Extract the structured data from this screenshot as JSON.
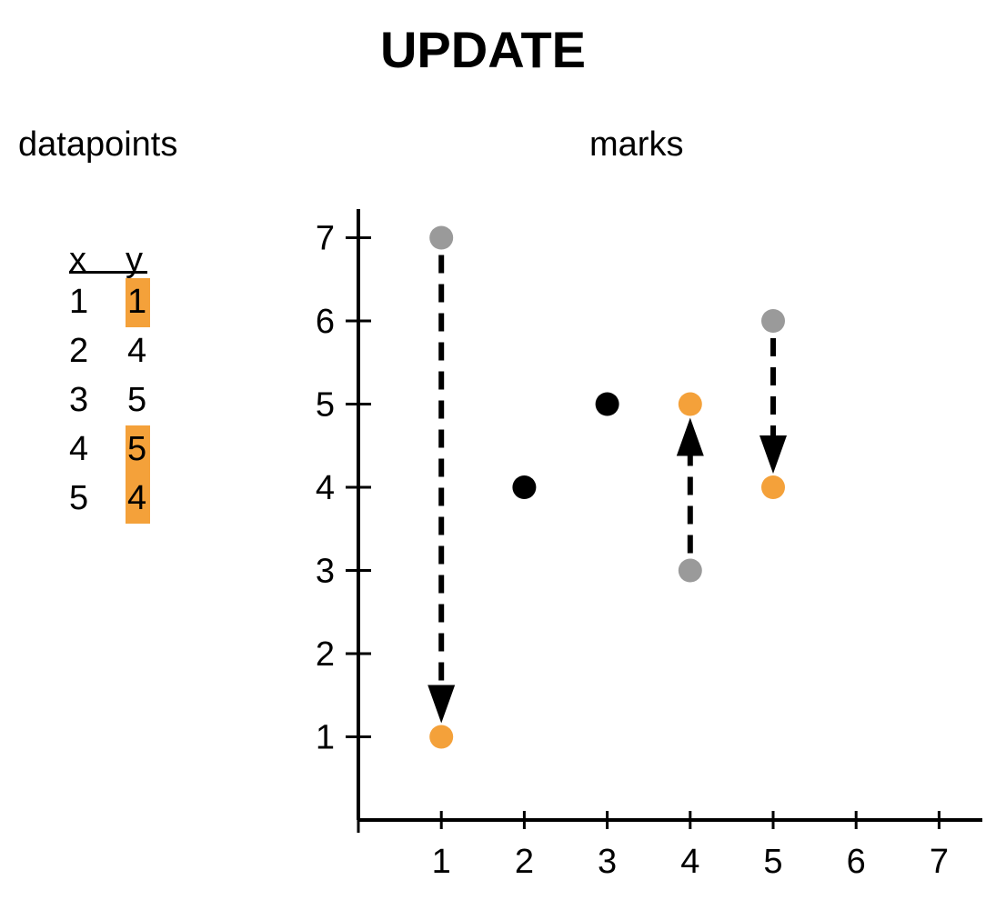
{
  "title": "UPDATE",
  "datapoints_heading": "datapoints",
  "marks_heading": "marks",
  "table": {
    "columns": [
      "x",
      "y"
    ],
    "rows": [
      {
        "x": "1",
        "y": "1",
        "highlighted": true
      },
      {
        "x": "2",
        "y": "4",
        "highlighted": false
      },
      {
        "x": "3",
        "y": "5",
        "highlighted": false
      },
      {
        "x": "4",
        "y": "5",
        "highlighted": true
      },
      {
        "x": "5",
        "y": "4",
        "highlighted": true
      }
    ]
  },
  "colors": {
    "highlight": "#f4a13a",
    "old_mark": "#9a9a9a",
    "new_mark": "#f4a13a",
    "unchanged_mark": "#000000"
  },
  "chart_data": {
    "type": "scatter",
    "xlim": [
      0,
      7.5
    ],
    "ylim": [
      0,
      7.5
    ],
    "x_ticks": [
      1,
      2,
      3,
      4,
      5,
      6,
      7
    ],
    "y_ticks": [
      1,
      2,
      3,
      4,
      5,
      6,
      7
    ],
    "x_tick_labels": [
      "1",
      "2",
      "3",
      "4",
      "5",
      "6",
      "7"
    ],
    "y_tick_labels": [
      "1",
      "2",
      "3",
      "4",
      "5",
      "6",
      "7"
    ],
    "unchanged_points": [
      {
        "x": 2,
        "y": 4
      },
      {
        "x": 3,
        "y": 5
      }
    ],
    "updates": [
      {
        "x": 1,
        "from": 7,
        "to": 1
      },
      {
        "x": 4,
        "from": 3,
        "to": 5
      },
      {
        "x": 5,
        "from": 6,
        "to": 4
      }
    ]
  }
}
